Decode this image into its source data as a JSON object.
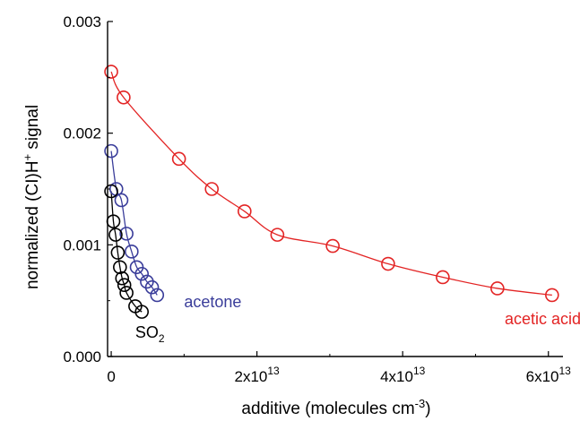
{
  "chart_data": {
    "type": "scatter",
    "xlabel": "additive  (molecules cm",
    "xlabel_sup": "-3",
    "xlabel_end": ")",
    "ylabel": "normalized (CI)H",
    "ylabel_sup": "+",
    "ylabel_end": " signal",
    "xlim": [
      -500000000000.0,
      62000000000000.0
    ],
    "ylim": [
      0,
      0.003
    ],
    "x_ticks": [
      {
        "value": 0,
        "mantissa": "0",
        "exp": ""
      },
      {
        "value": 20000000000000.0,
        "mantissa": "2x10",
        "exp": "13"
      },
      {
        "value": 40000000000000.0,
        "mantissa": "4x10",
        "exp": "13"
      },
      {
        "value": 60000000000000.0,
        "mantissa": "6x10",
        "exp": "13"
      }
    ],
    "y_ticks": [
      {
        "value": 0,
        "label": "0.000"
      },
      {
        "value": 0.001,
        "label": "0.001"
      },
      {
        "value": 0.002,
        "label": "0.002"
      },
      {
        "value": 0.003,
        "label": "0.003"
      }
    ],
    "series": [
      {
        "name": "acetic acid",
        "color": "#e32424",
        "label_x": 54000000000000.0,
        "label_y": 0.00029,
        "points": [
          [
            0,
            0.00255
          ],
          [
            1700000000000.0,
            0.00232
          ],
          [
            9300000000000.0,
            0.00177
          ],
          [
            13800000000000.0,
            0.0015
          ],
          [
            18300000000000.0,
            0.0013
          ],
          [
            22800000000000.0,
            0.00109
          ],
          [
            30400000000000.0,
            0.00099
          ],
          [
            38000000000000.0,
            0.00083
          ],
          [
            45500000000000.0,
            0.00071
          ],
          [
            53000000000000.0,
            0.00061
          ],
          [
            60500000000000.0,
            0.00055
          ]
        ]
      },
      {
        "name": "acetone",
        "color": "#3a3d9a",
        "label_x": 10000000000000.0,
        "label_y": 0.00044,
        "points": [
          [
            0,
            0.00184
          ],
          [
            700000000000.0,
            0.0015
          ],
          [
            1400000000000.0,
            0.0014
          ],
          [
            2100000000000.0,
            0.0011
          ],
          [
            2800000000000.0,
            0.00094
          ],
          [
            3500000000000.0,
            0.0008
          ],
          [
            4200000000000.0,
            0.00074
          ],
          [
            4900000000000.0,
            0.00067
          ],
          [
            5600000000000.0,
            0.00062
          ],
          [
            6300000000000.0,
            0.00055
          ]
        ]
      },
      {
        "name": "SO",
        "name_sub": "2",
        "color": "#000000",
        "label_x": 3300000000000.0,
        "label_y": 0.00017,
        "points": [
          [
            0,
            0.00148
          ],
          [
            300000000000.0,
            0.00121
          ],
          [
            600000000000.0,
            0.00109
          ],
          [
            900000000000.0,
            0.00093
          ],
          [
            1200000000000.0,
            0.0008
          ],
          [
            1500000000000.0,
            0.0007
          ],
          [
            1800000000000.0,
            0.00064
          ],
          [
            2100000000000.0,
            0.00057
          ],
          [
            3300000000000.0,
            0.00045
          ],
          [
            4200000000000.0,
            0.0004
          ]
        ]
      }
    ]
  }
}
